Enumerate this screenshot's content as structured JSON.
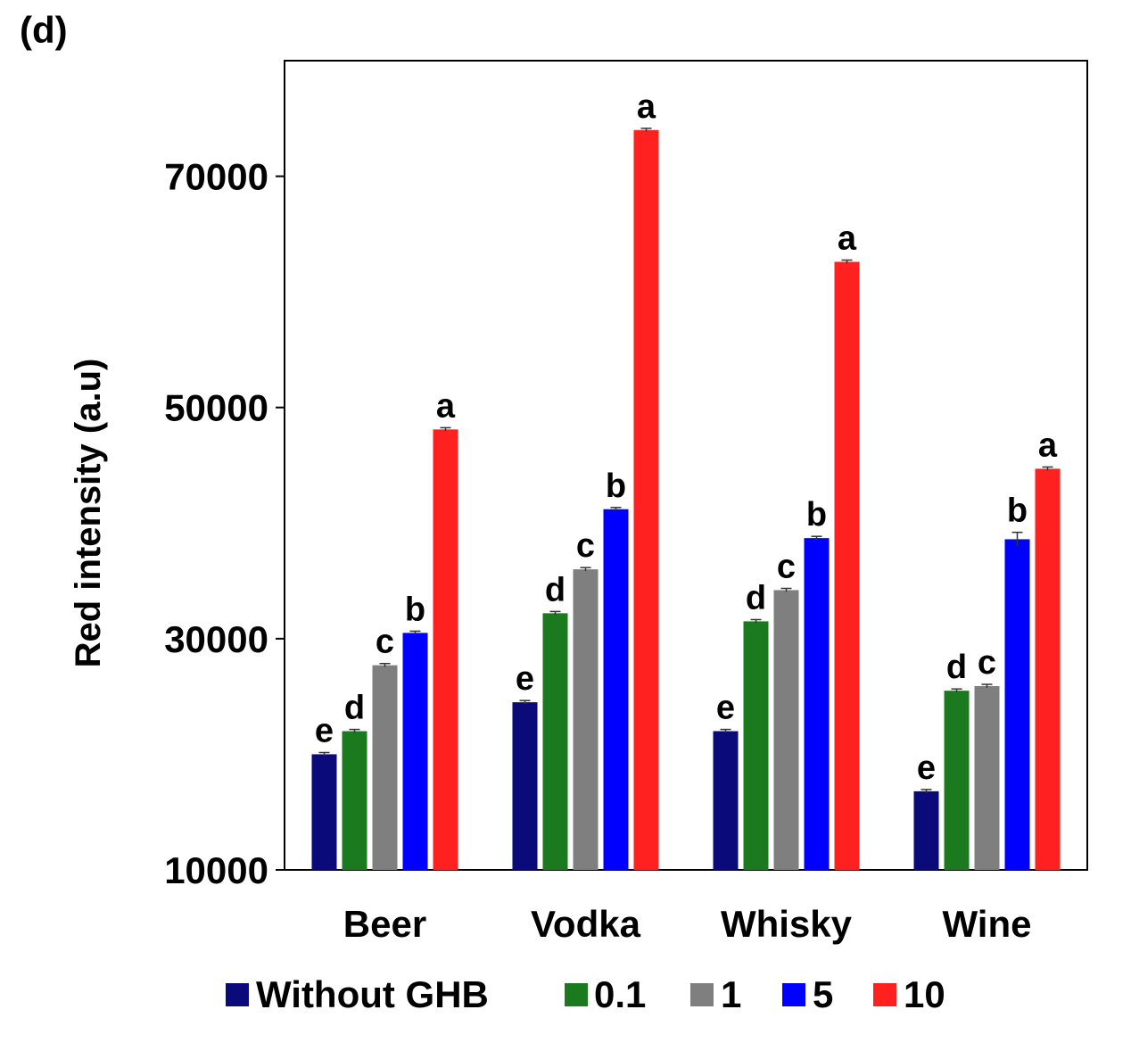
{
  "panel_label": "(d)",
  "chart_data": {
    "type": "bar",
    "title": "",
    "xlabel": "",
    "ylabel": "Red intensity (a.u)",
    "ylim": [
      10000,
      80000
    ],
    "yticks": [
      10000,
      30000,
      50000,
      70000
    ],
    "ytick_labels": [
      "10000",
      "30000",
      "50000",
      "70000"
    ],
    "categories": [
      "Beer",
      "Vodka",
      "Whisky",
      "Wine"
    ],
    "grid": false,
    "legend_position": "bottom",
    "series": [
      {
        "name": "Without GHB",
        "color": "#0a0a7a",
        "values": [
          20000,
          24500,
          22000,
          16800
        ],
        "errors": [
          150,
          150,
          150,
          150
        ],
        "letters": [
          "e",
          "e",
          "e",
          "e"
        ]
      },
      {
        "name": "0.1",
        "color": "#1b7a1e",
        "values": [
          22000,
          32200,
          31500,
          25500
        ],
        "errors": [
          150,
          150,
          150,
          150
        ],
        "letters": [
          "d",
          "d",
          "d",
          "d"
        ]
      },
      {
        "name": "1",
        "color": "#7f7f7f",
        "values": [
          27700,
          36000,
          34200,
          25900
        ],
        "errors": [
          150,
          150,
          150,
          150
        ],
        "letters": [
          "c",
          "c",
          "c",
          "c"
        ]
      },
      {
        "name": "5",
        "color": "#0000ff",
        "values": [
          30500,
          41200,
          38700,
          38600
        ],
        "errors": [
          150,
          150,
          150,
          600
        ],
        "letters": [
          "b",
          "b",
          "b",
          "b"
        ]
      },
      {
        "name": "10",
        "color": "#ff2020",
        "values": [
          48100,
          74000,
          62600,
          44700
        ],
        "errors": [
          150,
          150,
          150,
          150
        ],
        "letters": [
          "a",
          "a",
          "a",
          "a"
        ]
      }
    ]
  }
}
